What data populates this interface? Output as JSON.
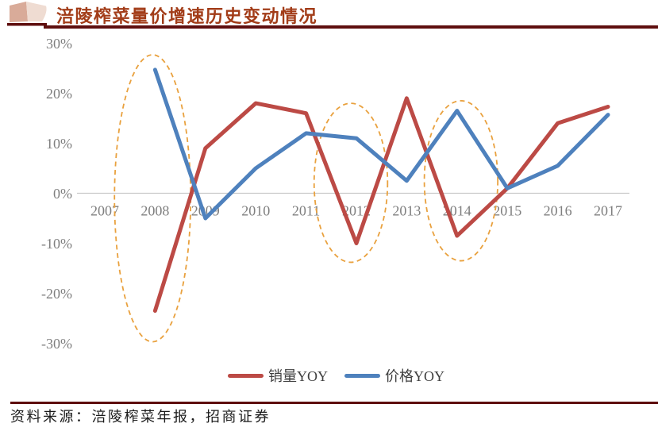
{
  "header": {
    "title": "涪陵榨菜量价增速历史变动情况",
    "title_color": "#A23C18",
    "rule_color": "#5E0E0E"
  },
  "chart_data": {
    "type": "line",
    "title": "涪陵榨菜量价增速历史变动情况",
    "categories": [
      "2007",
      "2008",
      "2009",
      "2010",
      "2011",
      "2012",
      "2013",
      "2014",
      "2015",
      "2016",
      "2017"
    ],
    "series": [
      {
        "name": "销量YOY",
        "color": "#BC4A45",
        "values": [
          null,
          -23.5,
          9,
          18,
          16,
          -10,
          19,
          -8.5,
          1,
          14,
          17.3
        ]
      },
      {
        "name": "价格YOY",
        "color": "#4E81BD",
        "values": [
          null,
          24.7,
          -5,
          5,
          12,
          11,
          2.5,
          16.5,
          1,
          5.5,
          15.7
        ]
      }
    ],
    "xlabel": "",
    "ylabel": "",
    "ylim": [
      -30,
      30
    ],
    "yticks": [
      30,
      20,
      10,
      0,
      -10,
      -20,
      -30
    ],
    "ytick_labels": [
      "30%",
      "20%",
      "10%",
      "0%",
      "-10%",
      "-20%",
      "-30%"
    ],
    "grid": false,
    "legend_position": "bottom",
    "axis_line_color": "#C9C9C9",
    "tick_label_color": "#7F7F7F",
    "annotations": [
      {
        "type": "ellipse",
        "color": "#E9A13E",
        "x_center_year": 2007.95,
        "y_center_pct": -1.0,
        "rx_years": 0.757,
        "ry_pct": 28.7
      },
      {
        "type": "ellipse",
        "color": "#E9A13E",
        "x_center_year": 2011.89,
        "y_center_pct": 2.1,
        "rx_years": 0.73,
        "ry_pct": 15.9
      },
      {
        "type": "ellipse",
        "color": "#E9A13E",
        "x_center_year": 2014.08,
        "y_center_pct": 2.5,
        "rx_years": 0.73,
        "ry_pct": 16.0
      }
    ]
  },
  "footer": {
    "source": "资料来源：涪陵榨菜年报，招商证券",
    "rule_color": "#5E0E0E"
  }
}
